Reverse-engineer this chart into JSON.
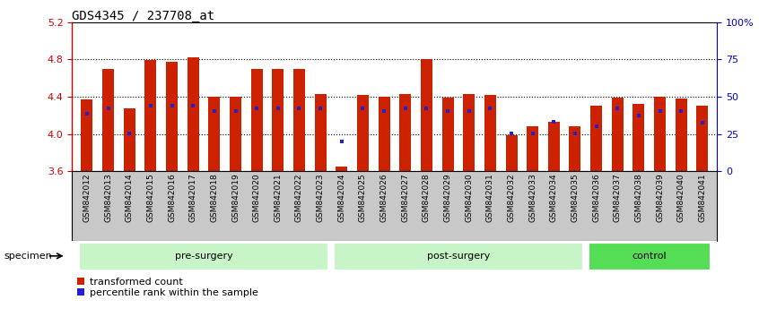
{
  "title": "GDS4345 / 237708_at",
  "samples": [
    "GSM842012",
    "GSM842013",
    "GSM842014",
    "GSM842015",
    "GSM842016",
    "GSM842017",
    "GSM842018",
    "GSM842019",
    "GSM842020",
    "GSM842021",
    "GSM842022",
    "GSM842023",
    "GSM842024",
    "GSM842025",
    "GSM842026",
    "GSM842027",
    "GSM842028",
    "GSM842029",
    "GSM842030",
    "GSM842031",
    "GSM842032",
    "GSM842033",
    "GSM842034",
    "GSM842035",
    "GSM842036",
    "GSM842037",
    "GSM842038",
    "GSM842039",
    "GSM842040",
    "GSM842041"
  ],
  "bar_tops": [
    4.37,
    4.7,
    4.27,
    4.79,
    4.77,
    4.82,
    4.4,
    4.4,
    4.7,
    4.7,
    4.7,
    4.43,
    3.65,
    4.42,
    4.4,
    4.43,
    4.8,
    4.39,
    4.43,
    4.42,
    3.99,
    4.08,
    4.13,
    4.08,
    4.3,
    4.39,
    4.32,
    4.4,
    4.38,
    4.3
  ],
  "percentile_y": [
    4.22,
    4.27,
    4.01,
    4.3,
    4.3,
    4.3,
    4.25,
    4.25,
    4.27,
    4.27,
    4.27,
    4.27,
    3.92,
    4.27,
    4.25,
    4.27,
    4.27,
    4.25,
    4.25,
    4.27,
    4.01,
    4.01,
    4.13,
    4.01,
    4.08,
    4.27,
    4.2,
    4.25,
    4.25,
    4.12
  ],
  "groups": [
    {
      "label": "pre-surgery",
      "start": 0,
      "end": 12,
      "color": "#c8f5c8"
    },
    {
      "label": "post-surgery",
      "start": 12,
      "end": 24,
      "color": "#c8f5c8"
    },
    {
      "label": "control",
      "start": 24,
      "end": 30,
      "color": "#55dd55"
    }
  ],
  "ymin": 3.6,
  "ymax": 5.2,
  "yticks_left": [
    3.6,
    4.0,
    4.4,
    4.8,
    5.2
  ],
  "yticks_right_pct": [
    0,
    25,
    50,
    75,
    100
  ],
  "ylabels_right": [
    "0",
    "25",
    "50",
    "75",
    "100%"
  ],
  "hlines": [
    4.0,
    4.4,
    4.8
  ],
  "bar_color": "#CC2200",
  "dot_color": "#2222CC",
  "bar_width": 0.55,
  "dot_size": 3.5,
  "xticklabel_bg": "#C8C8C8",
  "spine_left_color": "#CC0000",
  "spine_right_color": "#0000CC"
}
